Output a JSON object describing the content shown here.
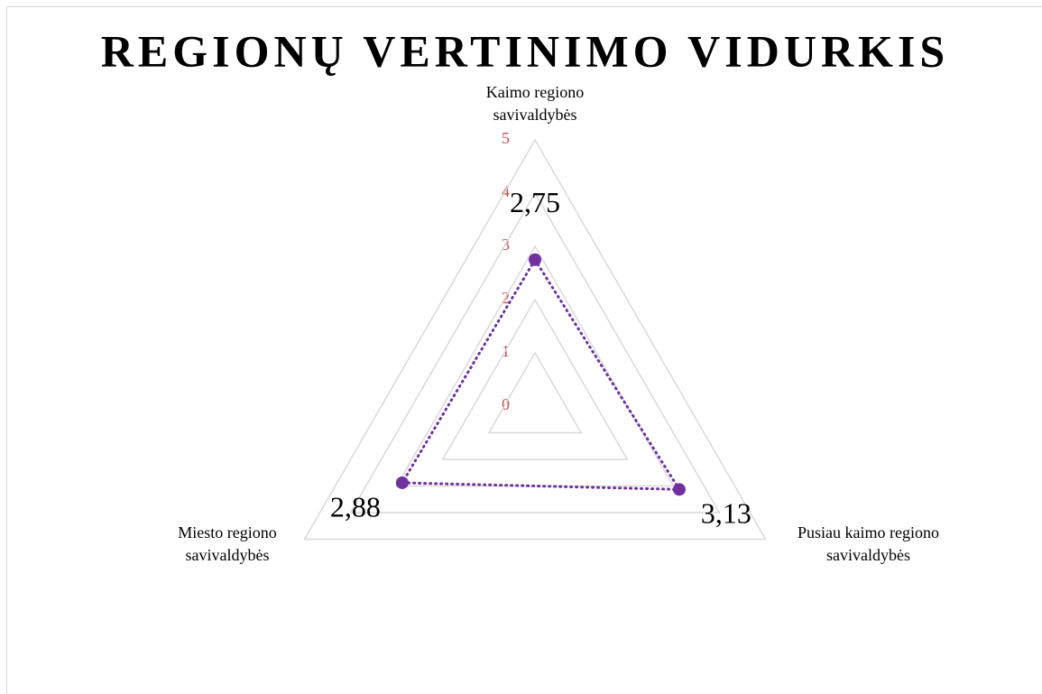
{
  "chart_data": {
    "type": "radar",
    "title": "REGIONŲ VERTINIMO VIDURKIS",
    "categories": [
      "Kaimo regiono savivaldybės",
      "Pusiau kaimo regiono savivaldybės",
      "Miesto regiono savivaldybės"
    ],
    "values": [
      2.75,
      3.13,
      2.88
    ],
    "value_labels": [
      "2,75",
      "3,13",
      "2,88"
    ],
    "color": "#7030a0",
    "ylim": [
      0,
      5
    ],
    "yticks": [
      0,
      1,
      2,
      3,
      4,
      5
    ],
    "grid": true
  }
}
